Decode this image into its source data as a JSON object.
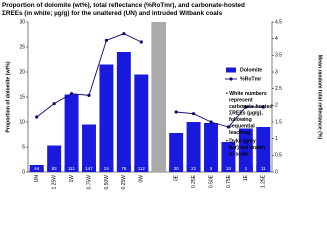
{
  "chart_data": {
    "type": "bar_line",
    "title": "Proportion of dolomite (wt%), total reflectance (%RoTmr), and carbonate-hosted ΣREEs (in white; µg/g) for the unaltered (UN) and intruded Witbank coals",
    "y_label": "Proportion of dolomite (wt%)",
    "y2_label": "Mean random total reflectance (%)",
    "categories": [
      "UN",
      "1.25W",
      "1W",
      "0.75W",
      "0.50W",
      "0.25W",
      "0W",
      null,
      "0E",
      "0.25E",
      "0.50E",
      "0.75E",
      "1E",
      "1.25E"
    ],
    "series": [
      {
        "name": "Dolomite",
        "type": "bar",
        "color": "#1a1adf",
        "values": [
          0.8,
          5.3,
          15.5,
          9.5,
          21.5,
          24,
          19.5,
          null,
          7.8,
          10,
          9.8,
          6,
          8.7,
          9
        ],
        "value_labels": [
          "64",
          "83",
          "111",
          "147",
          "24",
          "76",
          "112",
          null,
          "30",
          "21",
          "5",
          "18",
          "1",
          "11"
        ]
      },
      {
        "name": "%RoTmr",
        "type": "line",
        "axis": "y2",
        "color": "#0a0a6e",
        "values": [
          1.65,
          2.05,
          2.35,
          2.3,
          3.95,
          4.15,
          3.9,
          null,
          1.8,
          1.75,
          1.5,
          1.35,
          1.95,
          1.95
        ]
      }
    ],
    "dyke_color": "#aaaaaa",
    "ylim": [
      0,
      30
    ],
    "yticks": [
      0,
      5,
      10,
      15,
      20,
      25,
      30
    ],
    "y2lim": [
      0,
      4.5
    ],
    "y2ticks": [
      0,
      0.5,
      1,
      1.5,
      2,
      2.5,
      3,
      3.5,
      4,
      4.5
    ],
    "annotations": [
      "• White numbers represent carbonate-hosted ΣREEs (µg/g), following sequential leaching",
      "• Dyke (grey bar) not drawn to scale"
    ]
  }
}
